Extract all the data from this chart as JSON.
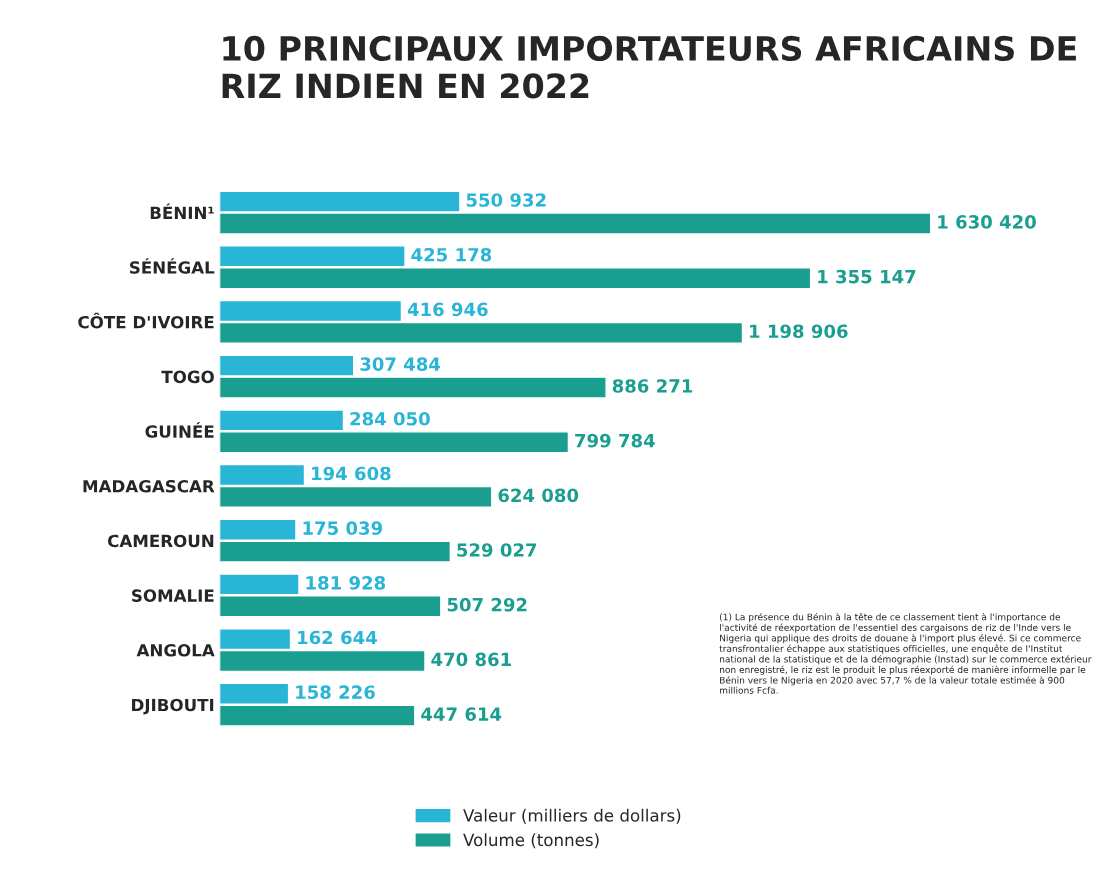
{
  "chart_data": {
    "type": "bar",
    "orientation": "horizontal",
    "title": "10 PRINCIPAUX IMPORTATEURS AFRICAINS DE RIZ INDIEN EN 2022",
    "categories": [
      "BÉNIN¹",
      "SÉNÉGAL",
      "CÔTE D'IVOIRE",
      "TOGO",
      "GUINÉE",
      "MADAGASCAR",
      "CAMEROUN",
      "SOMALIE",
      "ANGOLA",
      "DJIBOUTI"
    ],
    "series": [
      {
        "name": "Valeur (milliers de dollars)",
        "color": "#29b5d6",
        "values": [
          550932,
          425178,
          416946,
          307484,
          284050,
          194608,
          175039,
          181928,
          162644,
          158226
        ],
        "value_labels": [
          "550 932",
          "425 178",
          "416 946",
          "307 484",
          "284 050",
          "194 608",
          "175 039",
          "181 928",
          "162 644",
          "158 226"
        ]
      },
      {
        "name": "Volume (tonnes)",
        "color": "#1a9e8f",
        "values": [
          1630420,
          1355147,
          1198906,
          886271,
          799784,
          624080,
          529027,
          507292,
          470861,
          447614
        ],
        "value_labels": [
          "1 630 420",
          "1 355 147",
          "1 198 906",
          "886 271",
          "799 784",
          "624 080",
          "529 027",
          "507 292",
          "470 861",
          "447 614"
        ]
      }
    ],
    "tick_labels": "y",
    "grid": false,
    "legend": "bottom",
    "annotations": [
      "(1) La présence du Bénin à la tête de ce classement tient à l'importance de l'activité de réexportation de l'essentiel des cargaisons de riz de l'Inde vers le Nigeria qui applique des droits de douane à l'import plus élevé. Si ce commerce transfrontalier échappe aux statistiques officielles, une enquête de l'Institut national de la statistique et de la démographie (Instad) sur le commerce extérieur non enregistré, le riz est le produit le plus réexporté de manière informelle par le Bénin vers le Nigeria en 2020 avec 57,7 % de la valeur totale estimée à 900 millions Fcfa."
    ]
  }
}
